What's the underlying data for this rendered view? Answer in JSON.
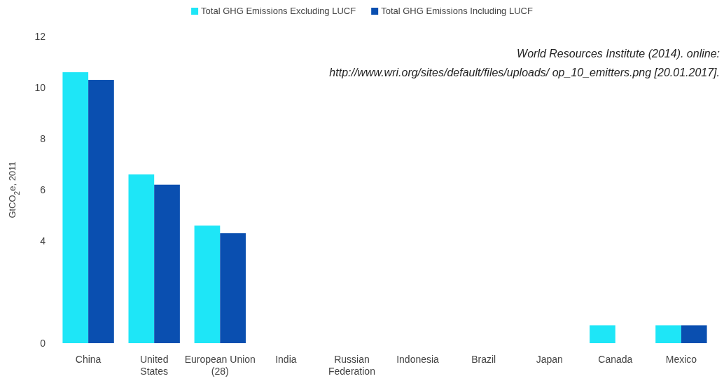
{
  "chart_data": {
    "type": "bar",
    "categories": [
      "China",
      "United States",
      "European Union (28)",
      "India",
      "Russian Federation",
      "Indonesia",
      "Brazil",
      "Japan",
      "Canada",
      "Mexico"
    ],
    "series": [
      {
        "name": "Total GHG Emissions Excluding LUCF",
        "color": "#1ee6f7",
        "values": [
          10.6,
          6.6,
          4.6,
          null,
          null,
          null,
          null,
          null,
          0.7,
          0.7
        ]
      },
      {
        "name": "Total GHG Emissions Including LUCF",
        "color": "#0a4fb0",
        "values": [
          10.3,
          6.2,
          4.3,
          null,
          null,
          null,
          null,
          null,
          null,
          0.7
        ]
      }
    ],
    "ylabel": "GtCO$_{2}$e, 2011",
    "ylim": [
      0,
      12
    ],
    "yticks": [
      0,
      4,
      6,
      8,
      10,
      12
    ],
    "legend": "top",
    "annotations": [
      "World Resources Institute (2014). online:",
      "http://www.wri.org/sites/default/files/uploads/ op_10_emitters.png [20.01.2017]."
    ]
  }
}
